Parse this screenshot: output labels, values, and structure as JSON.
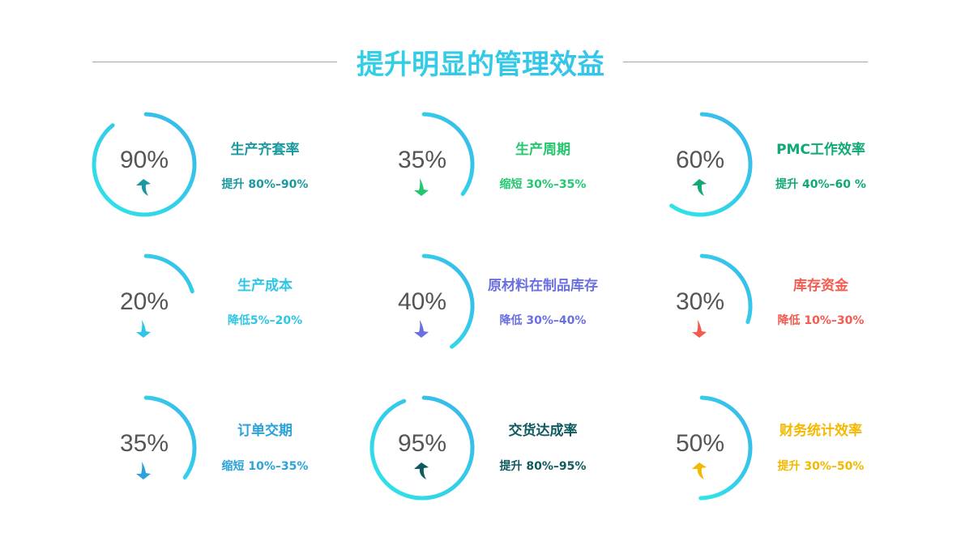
{
  "title": "提升明显的管理效益",
  "arc_gradient": [
    "#2ee6e6",
    "#3ab4ec"
  ],
  "items": [
    {
      "percent": "90%",
      "value": 90,
      "direction": "up",
      "title": "生产齐套率",
      "subtitle": "提升 80%–90%",
      "color": "#1a9aa0"
    },
    {
      "percent": "35%",
      "value": 35,
      "direction": "down",
      "title": "生产周期",
      "subtitle": "缩短 30%–35%",
      "color": "#23c86e"
    },
    {
      "percent": "60%",
      "value": 60,
      "direction": "up",
      "title": "PMC工作效率",
      "subtitle": "提升 40%–60 %",
      "color": "#10a874"
    },
    {
      "percent": "20%",
      "value": 20,
      "direction": "down",
      "title": "生产成本",
      "subtitle": "降低5%–20%",
      "color": "#2ec6e6"
    },
    {
      "percent": "40%",
      "value": 40,
      "direction": "down",
      "title": "原材料在制品库存",
      "subtitle": "降低 30%–40%",
      "color": "#6a70e0"
    },
    {
      "percent": "30%",
      "value": 30,
      "direction": "down",
      "title": "库存资金",
      "subtitle": "降低 10%–30%",
      "color": "#f55a4e"
    },
    {
      "percent": "35%",
      "value": 35,
      "direction": "down",
      "title": "订单交期",
      "subtitle": "缩短 10%–35%",
      "color": "#2aa2da"
    },
    {
      "percent": "95%",
      "value": 95,
      "direction": "up",
      "title": "交货达成率",
      "subtitle": "提升 80%–95%",
      "color": "#0e5a5e"
    },
    {
      "percent": "50%",
      "value": 50,
      "direction": "up",
      "title": "财务统计效率",
      "subtitle": "提升 30%–50%",
      "color": "#f5b800"
    }
  ]
}
